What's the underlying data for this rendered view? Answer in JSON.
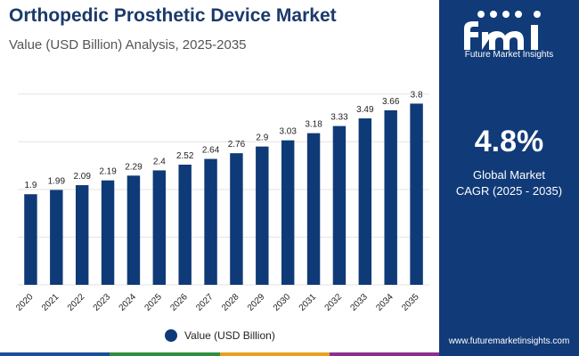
{
  "header": {
    "title": "Orthopedic Prosthetic Device Market",
    "subtitle": "Value (USD Billion) Analysis, 2025-2035"
  },
  "brand": {
    "logo_text": "Future Market Insights",
    "website": "www.futuremarketinsights.com",
    "panel_color": "#113a78"
  },
  "highlight": {
    "cagr_value": "4.8%",
    "cagr_label_line1": "Global Market",
    "cagr_label_line2": "CAGR (2025 - 2035)"
  },
  "chart_data": {
    "type": "bar",
    "categories": [
      "2020",
      "2021",
      "2022",
      "2023",
      "2024",
      "2025",
      "2026",
      "2027",
      "2028",
      "2029",
      "2030",
      "2031",
      "2032",
      "2033",
      "2034",
      "2035"
    ],
    "series": [
      {
        "name": "Value (USD Billion)",
        "values": [
          1.9,
          1.99,
          2.09,
          2.19,
          2.29,
          2.4,
          2.52,
          2.64,
          2.76,
          2.9,
          3.03,
          3.18,
          3.33,
          3.49,
          3.66,
          3.8
        ],
        "labels": [
          "1.9",
          "1.99",
          "2.09",
          "2.19",
          "2.29",
          "2.4",
          "2.52",
          "2.64",
          "2.76",
          "2.9",
          "3.03",
          "3.18",
          "3.33",
          "3.49",
          "3.66",
          "3.8"
        ],
        "color": "#0f3a78"
      }
    ],
    "ylim": [
      0,
      4.2
    ],
    "grid": true,
    "legend": "bottom-center",
    "xtick_rotation": -45
  },
  "footer_colors": [
    "#1a4e9a",
    "#2f8f3f",
    "#e8a020",
    "#8a2f8f"
  ]
}
